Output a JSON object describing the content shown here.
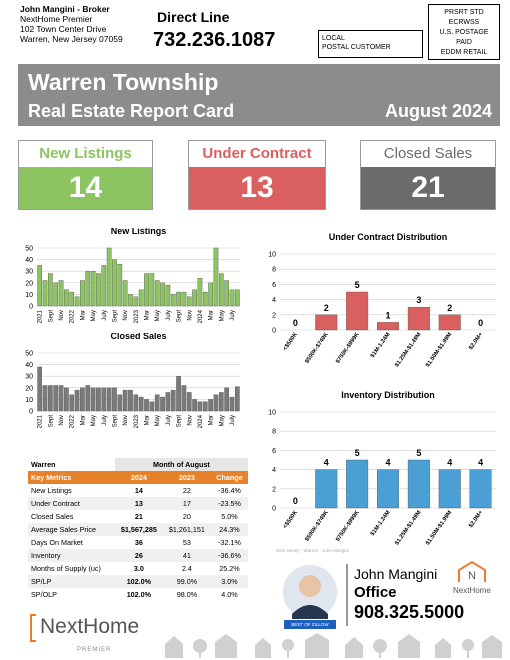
{
  "header": {
    "broker": [
      "John Mangini - Broker",
      "NextHome Premier",
      "102 Town Center Drive",
      "Warren, New Jersey 07059"
    ],
    "direct_line_label": "Direct Line",
    "direct_line": "732.236.1087",
    "addressee": [
      "LOCAL",
      "POSTAL CUSTOMER"
    ],
    "postage": [
      "PRSRT STD",
      "ECRWSS",
      "U.S. POSTAGE",
      "PAID",
      "EDDM RETAIL"
    ]
  },
  "banner": {
    "title": "Warren Township",
    "subtitle": "Real Estate Report Card",
    "period": "August 2024"
  },
  "stats": [
    {
      "label": "New Listings",
      "value": "14"
    },
    {
      "label": "Under Contract",
      "value": "13"
    },
    {
      "label": "Closed Sales",
      "value": "21"
    }
  ],
  "chart_data": [
    {
      "type": "bar",
      "title": "New Listings",
      "color": "#8dc462",
      "grid": true,
      "categories": [
        "2021",
        null,
        "Sept",
        null,
        "Nov",
        null,
        "2022",
        null,
        "Mar",
        null,
        "May",
        null,
        "July",
        null,
        "Sept",
        null,
        "Nov",
        null,
        "2023",
        null,
        "Mar",
        null,
        "May",
        null,
        "July",
        null,
        "Sept",
        null,
        "Nov",
        null,
        "2024",
        null,
        "Mar",
        null,
        "May",
        null,
        "July",
        null
      ],
      "values": [
        35,
        22,
        28,
        20,
        22,
        14,
        12,
        8,
        22,
        30,
        30,
        28,
        35,
        50,
        40,
        36,
        22,
        10,
        8,
        14,
        28,
        28,
        22,
        20,
        18,
        10,
        12,
        12,
        8,
        14,
        24,
        12,
        20,
        50,
        28,
        22,
        14,
        14
      ],
      "ylim": [
        0,
        50
      ],
      "yticks": [
        0,
        10,
        20,
        30,
        40,
        50
      ]
    },
    {
      "type": "bar",
      "title": "Closed Sales",
      "color": "#7a7a7a",
      "grid": true,
      "categories": [
        "2021",
        null,
        "Sept",
        null,
        "Nov",
        null,
        "2022",
        null,
        "Mar",
        null,
        "May",
        null,
        "July",
        null,
        "Sept",
        null,
        "Nov",
        null,
        "2023",
        null,
        "Mar",
        null,
        "May",
        null,
        "July",
        null,
        "Sept",
        null,
        "Nov",
        null,
        "2024",
        null,
        "Mar",
        null,
        "May",
        null,
        "July",
        null
      ],
      "values": [
        38,
        22,
        22,
        22,
        22,
        20,
        14,
        18,
        20,
        22,
        20,
        20,
        20,
        20,
        20,
        14,
        18,
        18,
        14,
        12,
        10,
        8,
        14,
        12,
        16,
        18,
        30,
        22,
        16,
        10,
        8,
        8,
        10,
        14,
        16,
        20,
        12,
        21
      ],
      "ylim": [
        0,
        50
      ],
      "yticks": [
        0,
        10,
        20,
        30,
        40,
        50
      ]
    },
    {
      "type": "bar",
      "title": "Under Contract Distribution",
      "color": "#d9605f",
      "grid": true,
      "data_labels": true,
      "categories": [
        "<$500K",
        "$500K-$749K",
        "$750K-$999K",
        "$1M-1.24M",
        "$1.25M-$1.49M",
        "$1.50M-$1.99M",
        "$2.0M+"
      ],
      "values": [
        0,
        2,
        5,
        1,
        3,
        2,
        0
      ],
      "ylim": [
        0,
        10
      ],
      "yticks": [
        0,
        2,
        4,
        6,
        8,
        10
      ]
    },
    {
      "type": "bar",
      "title": "Inventory Distribution",
      "color": "#4a9fd4",
      "grid": true,
      "data_labels": true,
      "categories": [
        "<$500K",
        "$500K-$749K",
        "$750K-$999K",
        "$1M-1.24M",
        "$1.25M-$1.49M",
        "$1.50M-$1.99M",
        "$2.0M+"
      ],
      "values": [
        0,
        4,
        5,
        4,
        5,
        4,
        4
      ],
      "ylim": [
        0,
        10
      ],
      "yticks": [
        0,
        2,
        4,
        6,
        8,
        10
      ]
    }
  ],
  "table": {
    "title": "Warren",
    "period": "Month of August",
    "header": [
      "Key Metrics",
      "2024",
      "2023",
      "Change"
    ],
    "rows": [
      [
        "New Listings",
        "14",
        "22",
        "-36.4%"
      ],
      [
        "Under Contract",
        "13",
        "17",
        "-23.5%"
      ],
      [
        "Closed Sales",
        "21",
        "20",
        "5.0%"
      ],
      [
        "Average Sales Price",
        "$1,567,285",
        "$1,261,151",
        "24.3%"
      ],
      [
        "Days On Market",
        "36",
        "53",
        "-32.1%"
      ],
      [
        "Inventory",
        "26",
        "41",
        "-36.6%"
      ],
      [
        "Months of Supply (uc)",
        "3.0",
        "2.4",
        "25.2%"
      ],
      [
        "SP/LP",
        "102.0%",
        "99.0%",
        "3.0%"
      ],
      [
        "SP/OLP",
        "102.0%",
        "98.0%",
        "4.0%"
      ]
    ]
  },
  "agent": {
    "caption": "New Jersey - Warren - John Mangini",
    "name": "John Mangini",
    "office_label": "Office",
    "phone": "908.325.5000",
    "brand": "NextHome",
    "badge": "BEST OF ZILLOW"
  },
  "footer": {
    "brand": "NextHome",
    "sub": "PREMIER"
  }
}
